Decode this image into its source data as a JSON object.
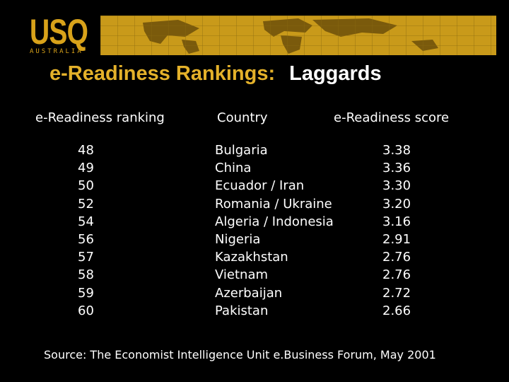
{
  "logo": {
    "main": "USQ",
    "sub": "AUSTRALIA"
  },
  "title": {
    "part1": "e-Readiness Rankings:",
    "part2": "Laggards"
  },
  "table": {
    "headers": {
      "rank": "e-Readiness ranking",
      "country": "Country",
      "score": "e-Readiness score"
    },
    "rows": [
      {
        "rank": "48",
        "country": "Bulgaria",
        "score": "3.38"
      },
      {
        "rank": "49",
        "country": "China",
        "score": "3.36"
      },
      {
        "rank": "50",
        "country": "Ecuador / Iran",
        "score": "3.30"
      },
      {
        "rank": "52",
        "country": "Romania / Ukraine",
        "score": "3.20"
      },
      {
        "rank": "54",
        "country": "Algeria / Indonesia",
        "score": "3.16"
      },
      {
        "rank": "56",
        "country": "Nigeria",
        "score": "2.91"
      },
      {
        "rank": "57",
        "country": "Kazakhstan",
        "score": "2.76"
      },
      {
        "rank": "58",
        "country": "Vietnam",
        "score": "2.76"
      },
      {
        "rank": "59",
        "country": "Azerbaijan",
        "score": "2.72"
      },
      {
        "rank": "60",
        "country": "Pakistan",
        "score": "2.66"
      }
    ]
  },
  "source": "Source:  The Economist Intelligence Unit e.Business Forum, May 2001",
  "colors": {
    "banner_gold": "#c99a1a",
    "title_gold": "#e4b12a",
    "background": "#000000"
  }
}
